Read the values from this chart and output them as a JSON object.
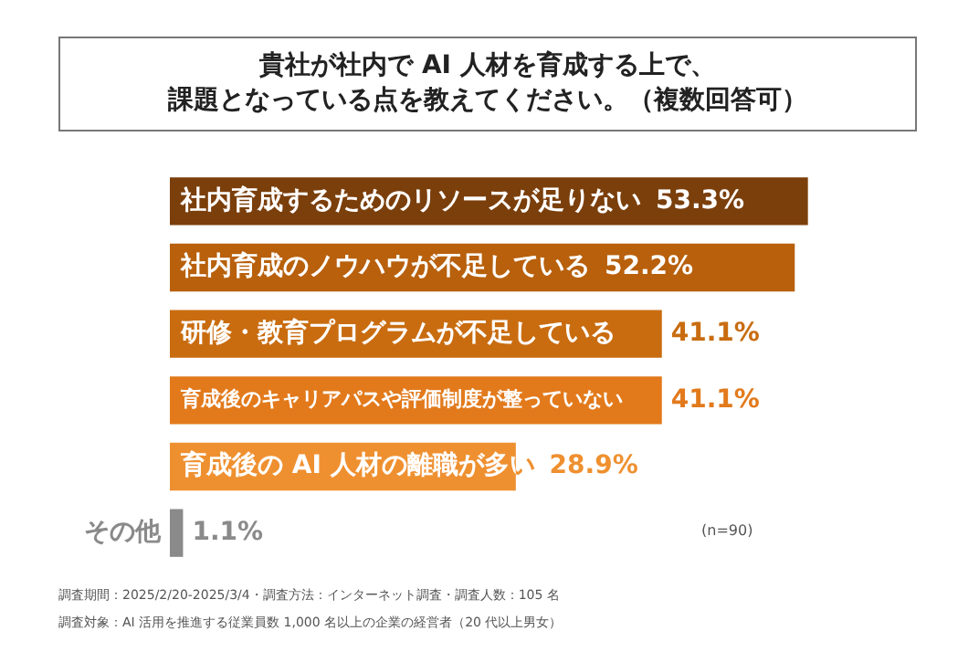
{
  "chart_data": {
    "type": "bar",
    "orientation": "horizontal",
    "title": "貴社が社内で AI 人材を育成する上で、",
    "subtitle": "課題となっている点を教えてください。（複数回答可）",
    "categories": [
      "社内育成するためのリソースが足りない",
      "社内育成のノウハウが不足している",
      "研修・教育プログラムが不足している",
      "育成後のキャリアパスや評価制度が整っていない",
      "育成後の AI 人材の離職が多い",
      "その他"
    ],
    "values": [
      53.3,
      52.2,
      41.1,
      41.1,
      28.9,
      1.1
    ],
    "colors": [
      "#7b3f0c",
      "#b8600c",
      "#c96c10",
      "#e27a1c",
      "#ef9030",
      "#8a8a8a"
    ],
    "value_labels": [
      "53.3%",
      "52.2%",
      "41.1%",
      "41.1%",
      "28.9%",
      "1.1%"
    ],
    "tick_labels": false,
    "legend": false,
    "annotations": [
      "(n=90)",
      "調査期間：2025/2/20-2025/3/4・調査方法：インターネット調査・調査人数：105 名",
      "調査対象：AI 活用を推進する従業員数 1,000 名以上の企業の経営者（20 代以上男女）"
    ]
  }
}
